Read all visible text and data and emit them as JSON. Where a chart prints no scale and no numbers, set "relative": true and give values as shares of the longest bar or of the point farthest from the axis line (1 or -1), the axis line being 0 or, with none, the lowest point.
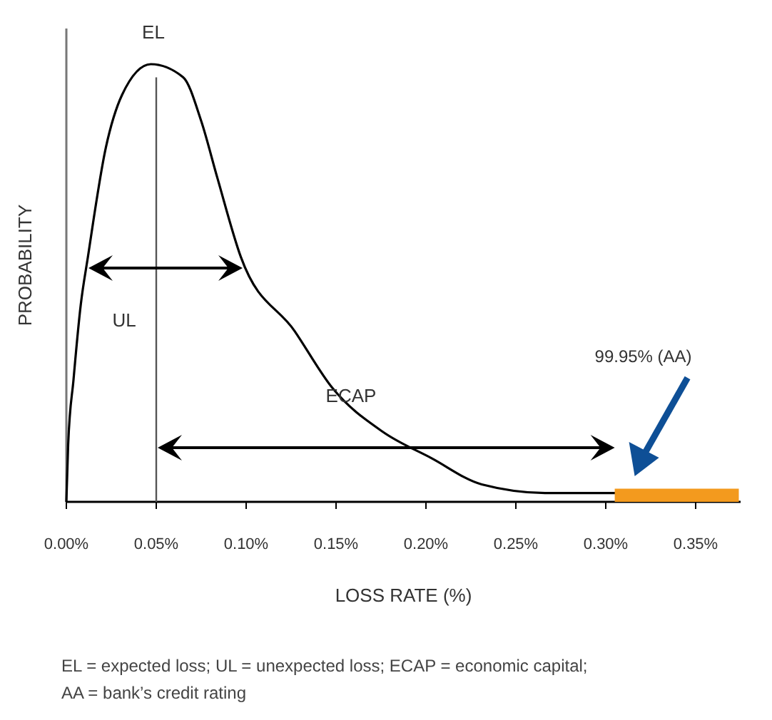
{
  "chart_data": {
    "type": "line",
    "relative": true,
    "xlabel": "LOSS RATE (%)",
    "ylabel": "PROBABILITY",
    "xlim": [
      0,
      0.375
    ],
    "xticks": [
      {
        "value": 0,
        "label": "0.00%"
      },
      {
        "value": 0.05,
        "label": "0.05%"
      },
      {
        "value": 0.1,
        "label": "0.10%"
      },
      {
        "value": 0.15,
        "label": "0.15%"
      },
      {
        "value": 0.2,
        "label": "0.20%"
      },
      {
        "value": 0.25,
        "label": "0.25%"
      },
      {
        "value": 0.3,
        "label": "0.30%"
      },
      {
        "value": 0.35,
        "label": "0.35%"
      }
    ],
    "series": [
      {
        "color": "#000000",
        "x": [
          0,
          0.001,
          0.004,
          0.008,
          0.012,
          0.022,
          0.031,
          0.047,
          0.065,
          0.075,
          0.084,
          0.097,
          0.127,
          0.148,
          0.176,
          0.203,
          0.231,
          0.268,
          0.306
        ],
        "values": [
          0,
          0.13,
          0.28,
          0.45,
          0.56,
          0.81,
          0.93,
          1,
          0.97,
          0.87,
          0.74,
          0.56,
          0.39,
          0.26,
          0.16,
          0.1,
          0.04,
          0.02,
          0.02
        ]
      },
      {
        "type": "area",
        "color": "#f39a1e",
        "x": [
          0.305,
          0.374
        ],
        "values": [
          0.03,
          0.03
        ]
      }
    ],
    "ref_lines": [
      {
        "axis": "x",
        "value": 0.05,
        "label": "EL",
        "color": "#555555"
      }
    ],
    "annotations": [
      "UL",
      "ECAP",
      "EL = expected loss; UL = unexpected loss; ECAP = economic capital; AA = bank’s credit rating",
      "99.95% (AA)"
    ],
    "grid": false
  }
}
